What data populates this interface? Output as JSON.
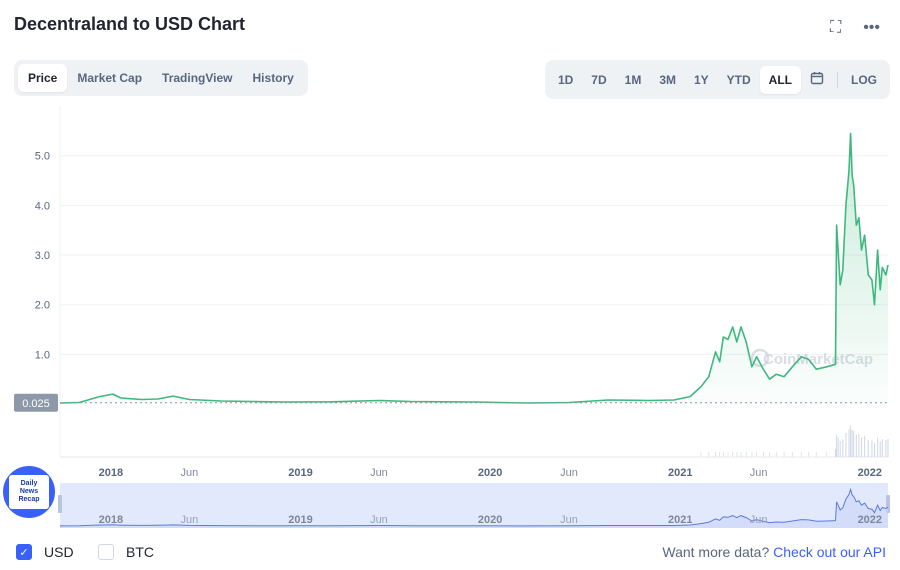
{
  "header": {
    "title": "Decentraland to USD Chart",
    "icons": [
      "fullscreen-icon",
      "more-icon"
    ]
  },
  "tabs": [
    {
      "label": "Price",
      "active": true
    },
    {
      "label": "Market Cap",
      "active": false
    },
    {
      "label": "TradingView",
      "active": false
    },
    {
      "label": "History",
      "active": false
    }
  ],
  "ranges": [
    {
      "label": "1D",
      "active": false
    },
    {
      "label": "7D",
      "active": false
    },
    {
      "label": "1M",
      "active": false
    },
    {
      "label": "3M",
      "active": false
    },
    {
      "label": "1Y",
      "active": false
    },
    {
      "label": "YTD",
      "active": false
    },
    {
      "label": "ALL",
      "active": true
    }
  ],
  "log_label": "LOG",
  "watermark": "CoinMarketCap",
  "badge": {
    "lines": [
      "Daily",
      "News",
      "Recap"
    ]
  },
  "footer": {
    "usd_label": "USD",
    "btc_label": "BTC",
    "more_text": "Want more data?",
    "more_link": "Check out our API"
  },
  "colors": {
    "line": "#3fb87f",
    "brand": "#3861fb",
    "navigator_line": "#5a7bd8"
  },
  "chart_data": {
    "type": "area",
    "y_ticks": [
      1.0,
      2.0,
      3.0,
      4.0,
      5.0
    ],
    "y_tick_labels": [
      "1.0",
      "2.0",
      "3.0",
      "4.0",
      "5.0"
    ],
    "ylim": [
      0,
      5.8
    ],
    "xlim": [
      "2017-09-25",
      "2022-02-05"
    ],
    "x_ticks": [
      {
        "date": "2018-01-01",
        "label": "2018",
        "major": true
      },
      {
        "date": "2018-06-01",
        "label": "Jun",
        "major": false
      },
      {
        "date": "2019-01-01",
        "label": "2019",
        "major": true
      },
      {
        "date": "2019-06-01",
        "label": "Jun",
        "major": false
      },
      {
        "date": "2020-01-01",
        "label": "2020",
        "major": true
      },
      {
        "date": "2020-06-01",
        "label": "Jun",
        "major": false
      },
      {
        "date": "2021-01-01",
        "label": "2021",
        "major": true
      },
      {
        "date": "2021-06-01",
        "label": "Jun",
        "major": false
      },
      {
        "date": "2022-01-01",
        "label": "2022",
        "major": true
      }
    ],
    "reference_line": {
      "value": 0.025,
      "label": "0.025"
    },
    "series": [
      {
        "points": [
          [
            "2017-09-25",
            0.02
          ],
          [
            "2017-11-01",
            0.03
          ],
          [
            "2017-12-10",
            0.15
          ],
          [
            "2018-01-05",
            0.2
          ],
          [
            "2018-01-20",
            0.12
          ],
          [
            "2018-03-01",
            0.09
          ],
          [
            "2018-04-01",
            0.1
          ],
          [
            "2018-05-01",
            0.16
          ],
          [
            "2018-06-01",
            0.09
          ],
          [
            "2018-08-01",
            0.06
          ],
          [
            "2018-10-01",
            0.05
          ],
          [
            "2018-12-01",
            0.04
          ],
          [
            "2019-03-01",
            0.045
          ],
          [
            "2019-06-01",
            0.07
          ],
          [
            "2019-08-01",
            0.05
          ],
          [
            "2019-12-01",
            0.04
          ],
          [
            "2020-03-15",
            0.02
          ],
          [
            "2020-06-01",
            0.03
          ],
          [
            "2020-08-15",
            0.08
          ],
          [
            "2020-11-01",
            0.07
          ],
          [
            "2020-12-20",
            0.08
          ],
          [
            "2021-01-20",
            0.15
          ],
          [
            "2021-02-10",
            0.35
          ],
          [
            "2021-02-25",
            0.55
          ],
          [
            "2021-03-10",
            1.05
          ],
          [
            "2021-03-18",
            0.85
          ],
          [
            "2021-03-25",
            1.35
          ],
          [
            "2021-04-03",
            1.3
          ],
          [
            "2021-04-12",
            1.55
          ],
          [
            "2021-04-20",
            1.25
          ],
          [
            "2021-04-28",
            1.55
          ],
          [
            "2021-05-08",
            1.25
          ],
          [
            "2021-05-19",
            0.75
          ],
          [
            "2021-05-28",
            0.95
          ],
          [
            "2021-06-10",
            0.7
          ],
          [
            "2021-06-22",
            0.5
          ],
          [
            "2021-07-05",
            0.6
          ],
          [
            "2021-07-20",
            0.55
          ],
          [
            "2021-08-05",
            0.75
          ],
          [
            "2021-08-22",
            0.95
          ],
          [
            "2021-09-05",
            0.9
          ],
          [
            "2021-09-20",
            0.7
          ],
          [
            "2021-10-10",
            0.75
          ],
          [
            "2021-10-27",
            0.8
          ],
          [
            "2021-10-29",
            3.6
          ],
          [
            "2021-11-01",
            3.1
          ],
          [
            "2021-11-05",
            2.4
          ],
          [
            "2021-11-10",
            2.7
          ],
          [
            "2021-11-16",
            4.0
          ],
          [
            "2021-11-22",
            4.7
          ],
          [
            "2021-11-25",
            5.45
          ],
          [
            "2021-11-28",
            4.6
          ],
          [
            "2021-12-01",
            4.4
          ],
          [
            "2021-12-06",
            3.6
          ],
          [
            "2021-12-11",
            3.75
          ],
          [
            "2021-12-16",
            3.1
          ],
          [
            "2021-12-22",
            3.4
          ],
          [
            "2021-12-29",
            2.6
          ],
          [
            "2022-01-05",
            2.5
          ],
          [
            "2022-01-10",
            2.0
          ],
          [
            "2022-01-16",
            3.1
          ],
          [
            "2022-01-21",
            2.3
          ],
          [
            "2022-01-25",
            2.75
          ],
          [
            "2022-02-01",
            2.6
          ],
          [
            "2022-02-05",
            2.8
          ]
        ]
      }
    ],
    "grid": true,
    "navigator": {
      "x_ticks": [
        {
          "date": "2018-01-01",
          "label": "2018",
          "major": true
        },
        {
          "date": "2018-06-01",
          "label": "Jun",
          "major": false
        },
        {
          "date": "2019-01-01",
          "label": "2019",
          "major": true
        },
        {
          "date": "2019-06-01",
          "label": "Jun",
          "major": false
        },
        {
          "date": "2020-01-01",
          "label": "2020",
          "major": true
        },
        {
          "date": "2020-06-01",
          "label": "Jun",
          "major": false
        },
        {
          "date": "2021-01-01",
          "label": "2021",
          "major": true
        },
        {
          "date": "2021-06-01",
          "label": "Jun",
          "major": false
        },
        {
          "date": "2022-01-01",
          "label": "2022",
          "major": true
        }
      ]
    }
  }
}
